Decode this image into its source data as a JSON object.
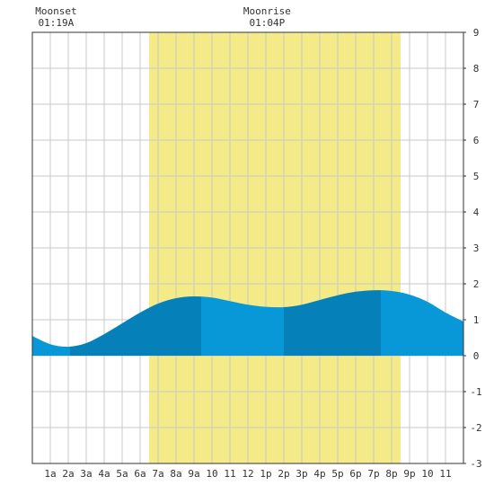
{
  "chart_data": {
    "type": "area",
    "title": "",
    "xlabel": "",
    "ylabel": "",
    "x_range": [
      0,
      24
    ],
    "ylim": [
      -3,
      9
    ],
    "grid": true,
    "x_tick_labels": [
      "1a",
      "2a",
      "3a",
      "4a",
      "5a",
      "6a",
      "7a",
      "8a",
      "9a",
      "10",
      "11",
      "12",
      "1p",
      "2p",
      "3p",
      "4p",
      "5p",
      "6p",
      "7p",
      "8p",
      "9p",
      "10",
      "11"
    ],
    "y_tick_labels": [
      "-3",
      "-2",
      "-1",
      "0",
      "1",
      "2",
      "3",
      "4",
      "5",
      "6",
      "7",
      "8",
      "9"
    ],
    "daylight": {
      "start_hour": 6.5,
      "end_hour": 20.5
    },
    "moon_events": [
      {
        "label": "Moonset",
        "time": "01:19A",
        "hour": 1.32
      },
      {
        "label": "Moonrise",
        "time": "01:04P",
        "hour": 13.07
      }
    ],
    "tide_curve": {
      "x": [
        0,
        1,
        2,
        3,
        4,
        5,
        6,
        7,
        8,
        9,
        10,
        11,
        12,
        13,
        14,
        15,
        16,
        17,
        18,
        19,
        20,
        21,
        22,
        23,
        24
      ],
      "y": [
        0.55,
        0.32,
        0.25,
        0.35,
        0.6,
        0.9,
        1.2,
        1.45,
        1.6,
        1.65,
        1.62,
        1.52,
        1.42,
        1.36,
        1.35,
        1.42,
        1.55,
        1.68,
        1.78,
        1.82,
        1.8,
        1.7,
        1.5,
        1.2,
        0.95
      ]
    },
    "shade_bands": [
      {
        "from": 0,
        "to": 2.1,
        "shade": "light"
      },
      {
        "from": 2.1,
        "to": 9.4,
        "shade": "dark"
      },
      {
        "from": 9.4,
        "to": 14.0,
        "shade": "light"
      },
      {
        "from": 14.0,
        "to": 19.4,
        "shade": "dark"
      },
      {
        "from": 19.4,
        "to": 24,
        "shade": "light"
      }
    ],
    "colors": {
      "background": "#ffffff",
      "grid": "#c8c8c8",
      "daylight": "#f4eb88",
      "tide_light": "#0898d8",
      "tide_dark": "#0580b8",
      "text": "#333333",
      "axis": "#333333"
    }
  }
}
